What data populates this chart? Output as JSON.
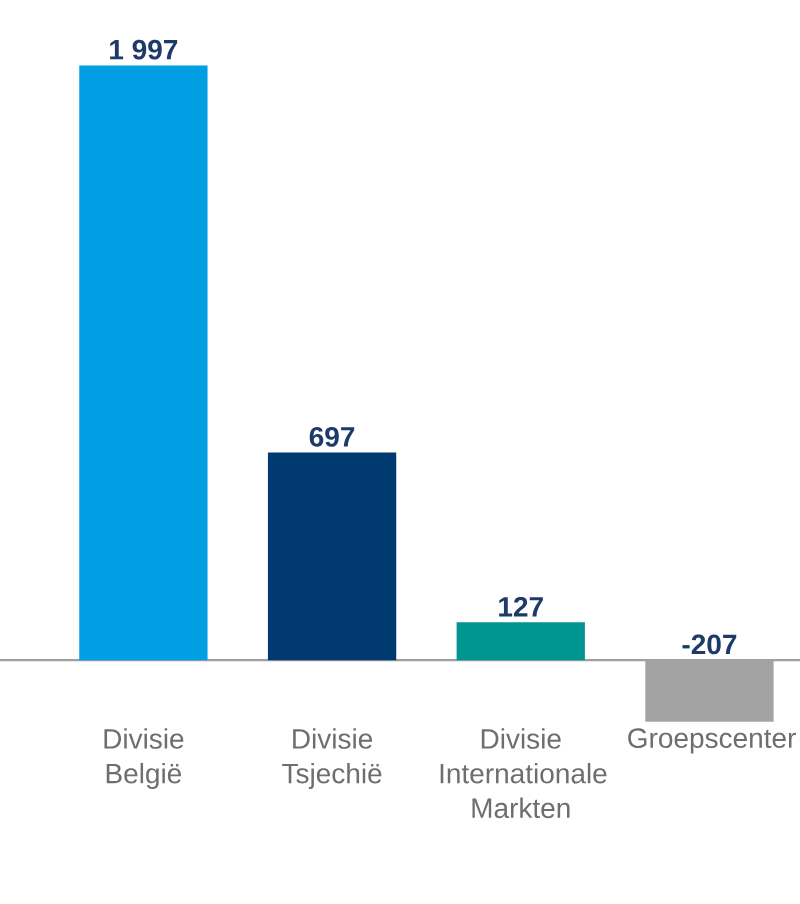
{
  "chart_data": {
    "type": "bar",
    "categories": [
      "Divisie België",
      "Divisie Tsjechië",
      "Divisie Internationale Markten",
      "Groepscenter"
    ],
    "values": [
      1997,
      697,
      127,
      -207
    ],
    "colors": [
      "#009fe3",
      "#003a70",
      "#00968f",
      "#a3a3a3"
    ],
    "value_labels": [
      "1 997",
      "697",
      "127",
      "-207"
    ]
  }
}
